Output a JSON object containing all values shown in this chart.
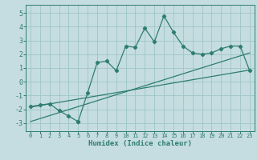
{
  "xlabel": "Humidex (Indice chaleur)",
  "xlim": [
    -0.5,
    23.5
  ],
  "ylim": [
    -3.6,
    5.6
  ],
  "xticks": [
    0,
    1,
    2,
    3,
    4,
    5,
    6,
    7,
    8,
    9,
    10,
    11,
    12,
    13,
    14,
    15,
    16,
    17,
    18,
    19,
    20,
    21,
    22,
    23
  ],
  "yticks": [
    -3,
    -2,
    -1,
    0,
    1,
    2,
    3,
    4,
    5
  ],
  "bg_color": "#c5dde0",
  "line_color": "#2e7d6e",
  "grid_color": "#9ec4c8",
  "curve_x": [
    0,
    1,
    2,
    3,
    4,
    5,
    5,
    6,
    7,
    8,
    9,
    10,
    11,
    12,
    13,
    14,
    15,
    16,
    17,
    18,
    19,
    20,
    21,
    22,
    23
  ],
  "curve_y": [
    -1.8,
    -1.7,
    -1.6,
    -2.1,
    -2.5,
    -2.9,
    -2.9,
    -0.8,
    1.4,
    1.5,
    0.8,
    2.6,
    2.5,
    3.9,
    2.9,
    4.8,
    3.6,
    2.6,
    2.1,
    2.0,
    2.1,
    2.4,
    2.6,
    2.6,
    0.8
  ],
  "line1_x": [
    0,
    23
  ],
  "line1_y": [
    -1.85,
    0.85
  ],
  "line2_x": [
    0,
    23
  ],
  "line2_y": [
    -2.9,
    2.1
  ]
}
